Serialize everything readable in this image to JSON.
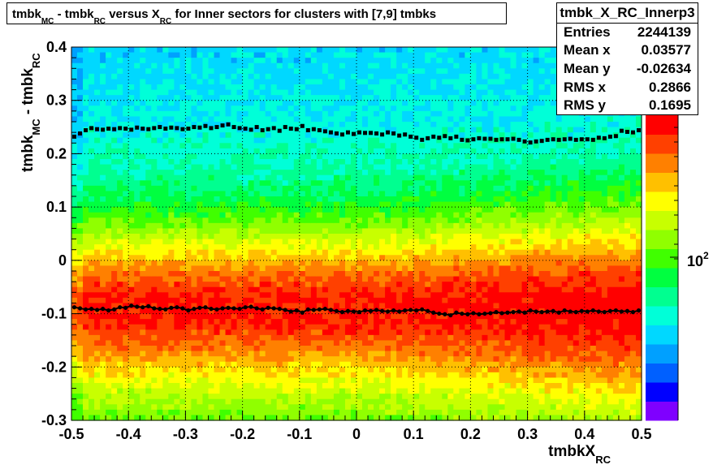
{
  "chart_data": {
    "type": "heatmap",
    "title_parts": [
      "tmbk",
      "MC",
      " - tmbk",
      "RC",
      " versus X",
      "RC",
      " for Inner sectors for clusters with [7,9] tmbks"
    ],
    "xlabel": {
      "main": "tmbkX",
      "sub": "RC"
    },
    "ylabel": {
      "p1": "tmbk",
      "s1": "MC",
      "p2": " - tmbk",
      "s2": "RC"
    },
    "xlim": [
      -0.5,
      0.5
    ],
    "ylim": [
      -0.3,
      0.4
    ],
    "x_ticks": [
      "-0.5",
      "-0.4",
      "-0.3",
      "-0.2",
      "-0.1",
      "0",
      "0.1",
      "0.2",
      "0.3",
      "0.4",
      "0.5"
    ],
    "y_ticks": [
      "-0.3",
      "-0.2",
      "-0.1",
      "0",
      "0.1",
      "0.2",
      "0.3",
      "0.4"
    ],
    "grid": true,
    "colorbar": {
      "label_base": "10",
      "label_exp": "2",
      "log_scale": true
    },
    "palette": [
      "#7f00ff",
      "#0000ff",
      "#0060ff",
      "#00a0ff",
      "#00d8ff",
      "#00ffd8",
      "#00ff90",
      "#00ff40",
      "#40ff00",
      "#90ff00",
      "#c8ff00",
      "#ffff00",
      "#ffc000",
      "#ff8000",
      "#ff4000",
      "#ff0000"
    ],
    "density_description": "dense band centered near -0.08 to -0.1 (red), broadening toward positive X; sparse at top (cyan/blue)",
    "upper_profile": {
      "x": [
        -0.495,
        -0.485,
        -0.475,
        -0.465,
        -0.455,
        -0.445,
        -0.435,
        -0.425,
        -0.415,
        -0.405,
        -0.395,
        -0.385,
        -0.375,
        -0.365,
        -0.355,
        -0.345,
        -0.335,
        -0.325,
        -0.315,
        -0.305,
        -0.295,
        -0.285,
        -0.275,
        -0.265,
        -0.255,
        -0.245,
        -0.235,
        -0.225,
        -0.215,
        -0.205,
        -0.195,
        -0.185,
        -0.175,
        -0.165,
        -0.155,
        -0.145,
        -0.135,
        -0.125,
        -0.115,
        -0.105,
        -0.095,
        -0.085,
        -0.075,
        -0.065,
        -0.055,
        -0.045,
        -0.035,
        -0.025,
        -0.015,
        -0.005,
        0.005,
        0.015,
        0.025,
        0.035,
        0.045,
        0.055,
        0.065,
        0.075,
        0.085,
        0.095,
        0.105,
        0.115,
        0.125,
        0.135,
        0.145,
        0.155,
        0.165,
        0.175,
        0.185,
        0.195,
        0.205,
        0.215,
        0.225,
        0.235,
        0.245,
        0.255,
        0.265,
        0.275,
        0.285,
        0.295,
        0.305,
        0.315,
        0.325,
        0.335,
        0.345,
        0.355,
        0.365,
        0.375,
        0.385,
        0.395,
        0.405,
        0.415,
        0.425,
        0.435,
        0.445,
        0.455,
        0.465,
        0.475,
        0.485,
        0.495
      ],
      "y": [
        0.232,
        0.238,
        0.244,
        0.248,
        0.246,
        0.245,
        0.247,
        0.246,
        0.248,
        0.247,
        0.245,
        0.249,
        0.247,
        0.246,
        0.248,
        0.25,
        0.247,
        0.249,
        0.248,
        0.246,
        0.247,
        0.25,
        0.249,
        0.252,
        0.248,
        0.25,
        0.253,
        0.255,
        0.25,
        0.248,
        0.247,
        0.245,
        0.25,
        0.244,
        0.246,
        0.248,
        0.243,
        0.25,
        0.247,
        0.246,
        0.252,
        0.244,
        0.246,
        0.244,
        0.242,
        0.24,
        0.238,
        0.236,
        0.24,
        0.237,
        0.24,
        0.239,
        0.239,
        0.238,
        0.236,
        0.24,
        0.238,
        0.234,
        0.236,
        0.232,
        0.23,
        0.226,
        0.229,
        0.232,
        0.23,
        0.233,
        0.229,
        0.232,
        0.226,
        0.225,
        0.227,
        0.229,
        0.228,
        0.228,
        0.226,
        0.227,
        0.227,
        0.228,
        0.226,
        0.223,
        0.221,
        0.223,
        0.224,
        0.226,
        0.227,
        0.226,
        0.227,
        0.228,
        0.226,
        0.227,
        0.227,
        0.226,
        0.23,
        0.229,
        0.232,
        0.233,
        0.243,
        0.241,
        0.24,
        0.244
      ]
    },
    "lower_profile": {
      "x": [
        -0.495,
        -0.485,
        -0.475,
        -0.465,
        -0.455,
        -0.445,
        -0.435,
        -0.425,
        -0.415,
        -0.405,
        -0.395,
        -0.385,
        -0.375,
        -0.365,
        -0.355,
        -0.345,
        -0.335,
        -0.325,
        -0.315,
        -0.305,
        -0.295,
        -0.285,
        -0.275,
        -0.265,
        -0.255,
        -0.245,
        -0.235,
        -0.225,
        -0.215,
        -0.205,
        -0.195,
        -0.185,
        -0.175,
        -0.165,
        -0.155,
        -0.145,
        -0.135,
        -0.125,
        -0.115,
        -0.105,
        -0.095,
        -0.085,
        -0.075,
        -0.065,
        -0.055,
        -0.045,
        -0.035,
        -0.025,
        -0.015,
        -0.005,
        0.005,
        0.015,
        0.025,
        0.035,
        0.045,
        0.055,
        0.065,
        0.075,
        0.085,
        0.095,
        0.105,
        0.115,
        0.125,
        0.135,
        0.145,
        0.155,
        0.165,
        0.175,
        0.185,
        0.195,
        0.205,
        0.215,
        0.225,
        0.235,
        0.245,
        0.255,
        0.265,
        0.275,
        0.285,
        0.295,
        0.305,
        0.315,
        0.325,
        0.335,
        0.345,
        0.355,
        0.365,
        0.375,
        0.385,
        0.395,
        0.405,
        0.415,
        0.425,
        0.435,
        0.445,
        0.455,
        0.465,
        0.475,
        0.485,
        0.495
      ],
      "y": [
        -0.088,
        -0.09,
        -0.092,
        -0.091,
        -0.093,
        -0.091,
        -0.094,
        -0.092,
        -0.088,
        -0.089,
        -0.085,
        -0.087,
        -0.088,
        -0.086,
        -0.09,
        -0.091,
        -0.092,
        -0.089,
        -0.088,
        -0.09,
        -0.094,
        -0.091,
        -0.089,
        -0.088,
        -0.091,
        -0.092,
        -0.09,
        -0.089,
        -0.09,
        -0.091,
        -0.088,
        -0.087,
        -0.09,
        -0.092,
        -0.089,
        -0.09,
        -0.091,
        -0.093,
        -0.096,
        -0.094,
        -0.098,
        -0.092,
        -0.093,
        -0.092,
        -0.091,
        -0.093,
        -0.095,
        -0.097,
        -0.095,
        -0.096,
        -0.097,
        -0.094,
        -0.095,
        -0.093,
        -0.095,
        -0.096,
        -0.094,
        -0.096,
        -0.094,
        -0.093,
        -0.094,
        -0.092,
        -0.095,
        -0.098,
        -0.1,
        -0.101,
        -0.103,
        -0.098,
        -0.1,
        -0.101,
        -0.099,
        -0.101,
        -0.1,
        -0.099,
        -0.097,
        -0.099,
        -0.098,
        -0.097,
        -0.096,
        -0.098,
        -0.094,
        -0.096,
        -0.097,
        -0.096,
        -0.095,
        -0.098,
        -0.094,
        -0.096,
        -0.097,
        -0.095,
        -0.096,
        -0.094,
        -0.096,
        -0.097,
        -0.095,
        -0.094,
        -0.096,
        -0.095,
        -0.097,
        -0.094
      ]
    }
  },
  "stats": {
    "name": "tmbk_X_RC_Innerp3",
    "rows": [
      {
        "key": "Entries",
        "value": "2244139"
      },
      {
        "key": "Mean x",
        "value": "0.03577"
      },
      {
        "key": "Mean y",
        "value": "-0.02634"
      },
      {
        "key": "RMS x",
        "value": "0.2866"
      },
      {
        "key": "RMS y",
        "value": "0.1695"
      }
    ]
  }
}
